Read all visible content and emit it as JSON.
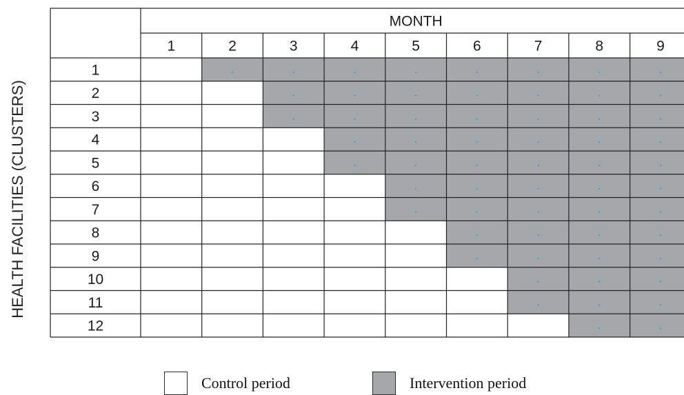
{
  "header": {
    "column_group_label": "MONTH"
  },
  "axis": {
    "row_title": "HEALTH FACILITIES (CLUSTERS)"
  },
  "months": [
    "1",
    "2",
    "3",
    "4",
    "5",
    "6",
    "7",
    "8",
    "9"
  ],
  "clusters": [
    {
      "label": "1",
      "intervention_start_month": 2
    },
    {
      "label": "2",
      "intervention_start_month": 3
    },
    {
      "label": "3",
      "intervention_start_month": 3
    },
    {
      "label": "4",
      "intervention_start_month": 4
    },
    {
      "label": "5",
      "intervention_start_month": 4
    },
    {
      "label": "6",
      "intervention_start_month": 5
    },
    {
      "label": "7",
      "intervention_start_month": 5
    },
    {
      "label": "8",
      "intervention_start_month": 6
    },
    {
      "label": "9",
      "intervention_start_month": 6
    },
    {
      "label": "10",
      "intervention_start_month": 7
    },
    {
      "label": "11",
      "intervention_start_month": 7
    },
    {
      "label": "12",
      "intervention_start_month": 8
    }
  ],
  "legend": {
    "control_label": "Control period",
    "intervention_label": "Intervention period"
  },
  "colors": {
    "intervention_fill": "#a6a7ab",
    "control_fill": "#ffffff",
    "grid_line": "#222222",
    "cell_dot": "#3aa6d8"
  }
}
